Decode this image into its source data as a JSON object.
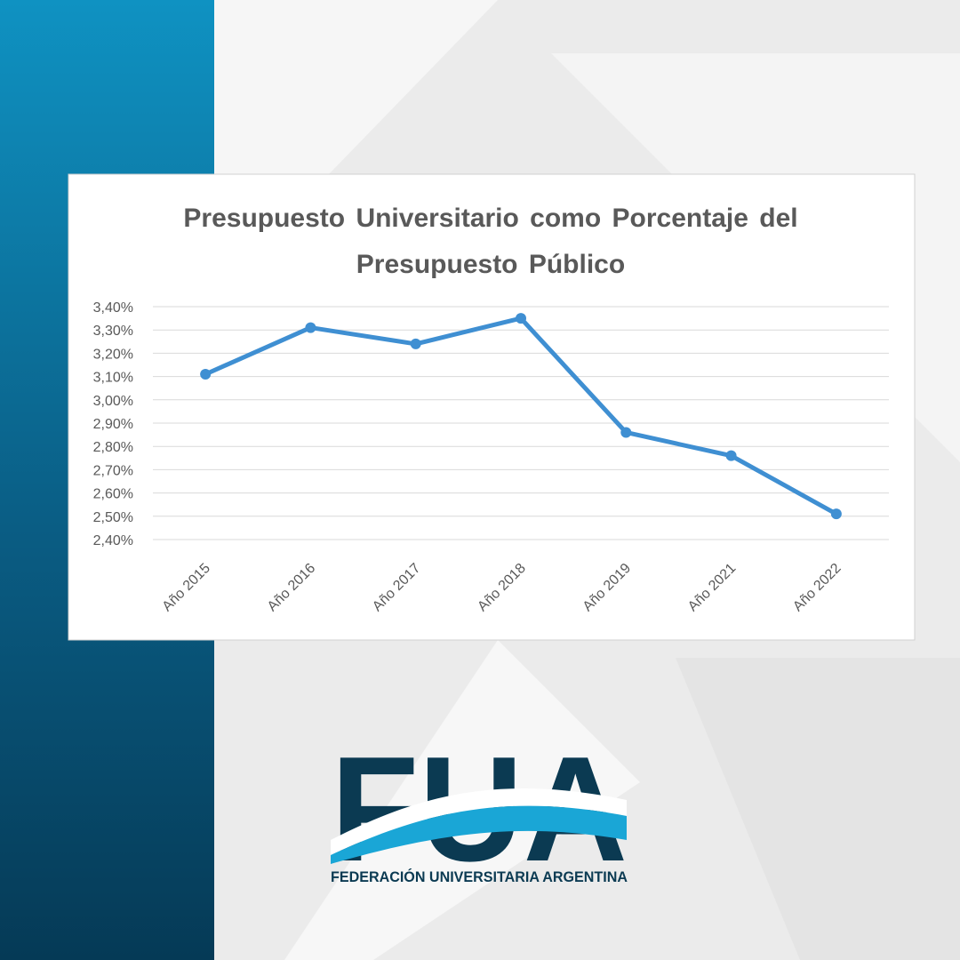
{
  "chart_data": {
    "type": "line",
    "title": "Presupuesto Universitario como Porcentaje del Presupuesto Público",
    "categories": [
      "Año 2015",
      "Año 2016",
      "Año 2017",
      "Año 2018",
      "Año 2019",
      "Año 2021",
      "Año 2022"
    ],
    "values": [
      3.11,
      3.31,
      3.24,
      3.35,
      2.86,
      2.76,
      2.51
    ],
    "color": "#3f8fd2",
    "ylim": [
      2.4,
      3.4
    ],
    "yticks": [
      {
        "value": 2.4,
        "label": "2,40%"
      },
      {
        "value": 2.5,
        "label": "2,50%"
      },
      {
        "value": 2.6,
        "label": "2,60%"
      },
      {
        "value": 2.7,
        "label": "2,70%"
      },
      {
        "value": 2.8,
        "label": "2,80%"
      },
      {
        "value": 2.9,
        "label": "2,90%"
      },
      {
        "value": 3.0,
        "label": "3,00%"
      },
      {
        "value": 3.1,
        "label": "3,10%"
      },
      {
        "value": 3.2,
        "label": "3,20%"
      },
      {
        "value": 3.3,
        "label": "3,30%"
      },
      {
        "value": 3.4,
        "label": "3,40%"
      }
    ],
    "grid": true
  },
  "logo": {
    "mark": "FUA",
    "name": "FEDERACIÓN UNIVERSITARIA ARGENTINA"
  }
}
